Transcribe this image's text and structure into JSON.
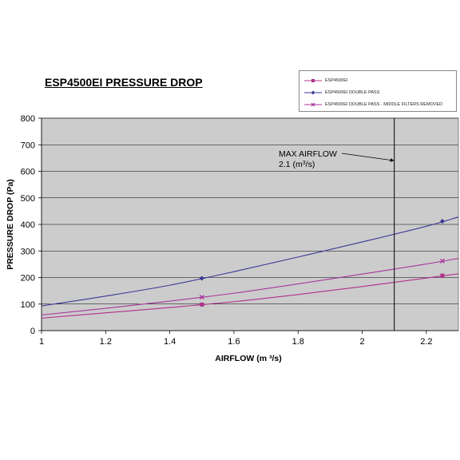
{
  "chart_data": {
    "type": "line",
    "title": "ESP4500EI PRESSURE DROP",
    "xlabel": "AIRFLOW (m ³/s)",
    "ylabel": "PRESSURE DROP (Pa)",
    "xlim": [
      1,
      2.3
    ],
    "ylim": [
      0,
      800
    ],
    "x_ticks": [
      "1",
      "1.2",
      "1.4",
      "1.6",
      "1.8",
      "2",
      "2.2"
    ],
    "y_ticks": [
      "0",
      "100",
      "200",
      "300",
      "400",
      "500",
      "600",
      "700",
      "800"
    ],
    "grid": true,
    "legend_position": "top-right",
    "series": [
      {
        "name": "ESP4500EI",
        "color": "#b0308c",
        "marker": "square",
        "points": [
          [
            1.5,
            98
          ],
          [
            2.25,
            207
          ]
        ],
        "curve": [
          [
            1,
            47
          ],
          [
            1.2,
            67
          ],
          [
            1.4,
            87
          ],
          [
            1.6,
            109
          ],
          [
            1.8,
            136
          ],
          [
            2.0,
            166
          ],
          [
            2.2,
            198
          ],
          [
            2.3,
            214
          ]
        ]
      },
      {
        "name": "ESP4500EI DOUBLE PASS",
        "color": "#3a3a96",
        "marker": "diamond",
        "points": [
          [
            1.5,
            197
          ],
          [
            2.25,
            412
          ]
        ],
        "curve": [
          [
            1,
            93
          ],
          [
            1.2,
            130
          ],
          [
            1.4,
            171
          ],
          [
            1.6,
            222
          ],
          [
            1.8,
            277
          ],
          [
            2.0,
            334
          ],
          [
            2.2,
            393
          ],
          [
            2.3,
            428
          ]
        ]
      },
      {
        "name": "ESP4500EI DOUBLE PASS  - MIDDLE FILTERS REMOVED",
        "color": "#a8369c",
        "marker": "x",
        "points": [
          [
            1.5,
            126
          ],
          [
            2.25,
            262
          ]
        ],
        "curve": [
          [
            1,
            59
          ],
          [
            1.2,
            84
          ],
          [
            1.4,
            111
          ],
          [
            1.6,
            141
          ],
          [
            1.8,
            176
          ],
          [
            2.0,
            213
          ],
          [
            2.2,
            251
          ],
          [
            2.3,
            272
          ]
        ]
      }
    ],
    "annotation": {
      "x_value": 2.1,
      "line1": "MAX AIRFLOW",
      "line2_prefix": "2.1 (m",
      "line2_sup": "3",
      "line2_suffix": "/s)"
    }
  }
}
